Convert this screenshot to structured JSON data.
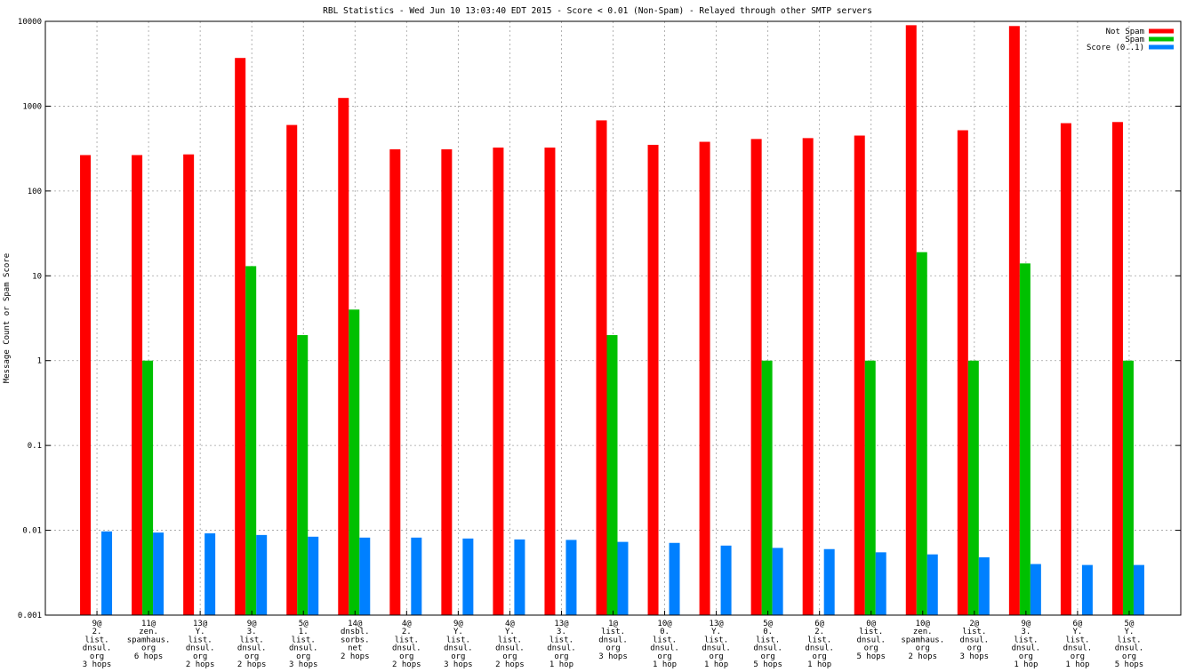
{
  "chart_data": {
    "type": "bar",
    "scale": "log",
    "title": "RBL Statistics - Wed Jun 10 13:03:40 EDT 2015 - Score < 0.01 (Non-Spam) - Relayed through other SMTP servers",
    "ylabel": "Message Count or Spam Score",
    "ylim": [
      0.001,
      10000
    ],
    "yticks": [
      "0.001",
      "0.01",
      "0.1",
      "1",
      "10",
      "100",
      "1000",
      "10000"
    ],
    "grid": true,
    "legend_position": "top-right",
    "series": [
      {
        "name": "Not Spam",
        "color": "#ff0000",
        "values": [
          265,
          265,
          270,
          3700,
          600,
          1250,
          310,
          310,
          325,
          325,
          680,
          350,
          380,
          410,
          420,
          450,
          9000,
          520,
          8800,
          630,
          650
        ]
      },
      {
        "name": "Spam",
        "color": "#00c000",
        "values": [
          null,
          1,
          null,
          13,
          2,
          4,
          null,
          null,
          null,
          null,
          2,
          null,
          null,
          1,
          null,
          1,
          19,
          1,
          14,
          null,
          1
        ]
      },
      {
        "name": "Score (0..1)",
        "color": "#0080ff",
        "values": [
          0.0097,
          0.0094,
          0.0092,
          0.0088,
          0.0084,
          0.0082,
          0.0082,
          0.008,
          0.0078,
          0.0077,
          0.0073,
          0.0071,
          0.0066,
          0.0062,
          0.006,
          0.0055,
          0.0052,
          0.0048,
          0.004,
          0.0039,
          0.0039
        ]
      }
    ],
    "categories": [
      [
        "9@",
        "2.",
        "list.",
        "dnsul.",
        "org",
        "3 hops"
      ],
      [
        "11@",
        "zen.",
        "spamhaus.",
        "org",
        "6 hops"
      ],
      [
        "13@",
        "Y.",
        "list.",
        "dnsul.",
        "org",
        "2 hops"
      ],
      [
        "9@",
        "3.",
        "list.",
        "dnsul.",
        "org",
        "2 hops"
      ],
      [
        "5@",
        "1.",
        "list.",
        "dnsul.",
        "org",
        "3 hops"
      ],
      [
        "14@",
        "dnsbl.",
        "sorbs.",
        "net",
        "2 hops"
      ],
      [
        "4@",
        "2.",
        "list.",
        "dnsul.",
        "org",
        "2 hops"
      ],
      [
        "9@",
        "Y.",
        "list.",
        "dnsul.",
        "org",
        "3 hops"
      ],
      [
        "4@",
        "Y.",
        "list.",
        "dnsul.",
        "org",
        "2 hops"
      ],
      [
        "13@",
        "3.",
        "list.",
        "dnsul.",
        "org",
        "1 hop"
      ],
      [
        "1@",
        "list.",
        "dnsul.",
        "org",
        "3 hops"
      ],
      [
        "10@",
        "0.",
        "list.",
        "dnsul.",
        "org",
        "1 hop"
      ],
      [
        "13@",
        "Y.",
        "list.",
        "dnsul.",
        "org",
        "1 hop"
      ],
      [
        "5@",
        "0.",
        "list.",
        "dnsul.",
        "org",
        "5 hops"
      ],
      [
        "6@",
        "2.",
        "list.",
        "dnsul.",
        "org",
        "1 hop"
      ],
      [
        "0@",
        "list.",
        "dnsul.",
        "org",
        "5 hops"
      ],
      [
        "10@",
        "zen.",
        "spamhaus.",
        "org",
        "2 hops"
      ],
      [
        "2@",
        "list.",
        "dnsul.",
        "org",
        "3 hops"
      ],
      [
        "9@",
        "3.",
        "list.",
        "dnsul.",
        "org",
        "1 hop"
      ],
      [
        "6@",
        "Y.",
        "list.",
        "dnsul.",
        "org",
        "1 hop"
      ],
      [
        "5@",
        "Y.",
        "list.",
        "dnsul.",
        "org",
        "5 hops"
      ]
    ]
  }
}
